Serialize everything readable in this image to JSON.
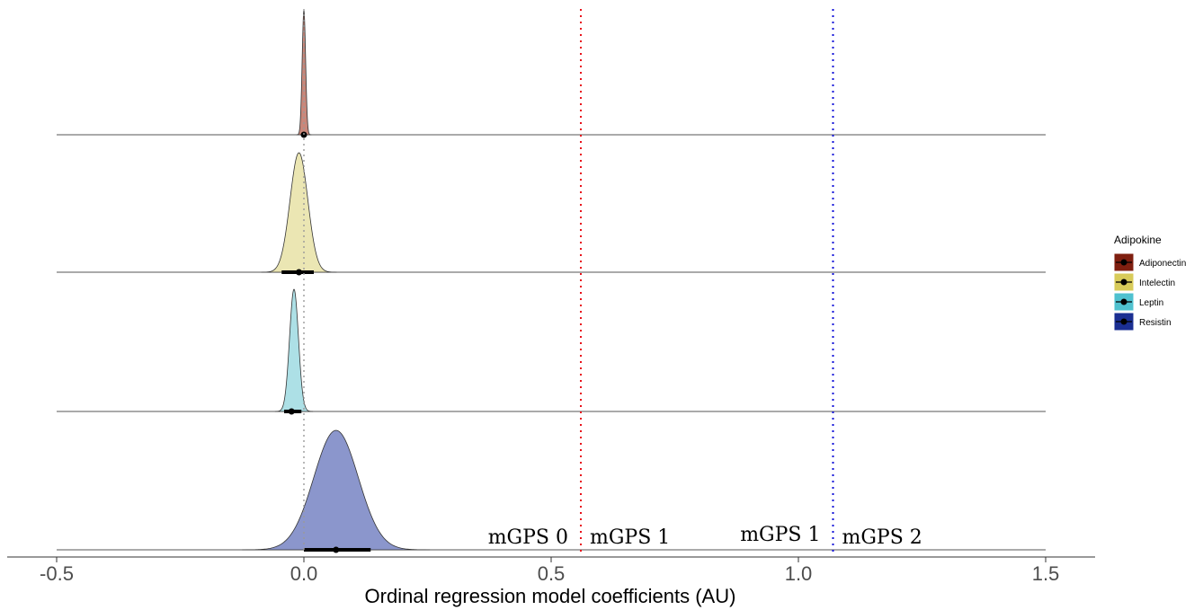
{
  "chart_data": {
    "type": "ridgeline",
    "xlabel": "Ordinal regression model coefficients (AU)",
    "xlim": [
      -0.5,
      1.5
    ],
    "xticks": [
      -0.5,
      0.0,
      0.5,
      1.0,
      1.5
    ],
    "xtick_labels": [
      "-0.5",
      "0.0",
      "0.5",
      "1.0",
      "1.5"
    ],
    "reference_line": 0,
    "legend": {
      "title": "Adipokine",
      "position": "right"
    },
    "series": [
      {
        "name": "Adiponectin",
        "color": "#7f1f10",
        "fill": "#c9877a",
        "peak_x": 0.0,
        "peak_sd": 0.0035,
        "point": 0.0,
        "interval": [
          -0.004,
          0.004
        ]
      },
      {
        "name": "Intelectin",
        "color": "#d8cb5a",
        "fill": "#ebe6b3",
        "peak_x": -0.01,
        "peak_sd": 0.018,
        "point": -0.01,
        "interval": [
          -0.045,
          0.02
        ]
      },
      {
        "name": "Leptin",
        "color": "#4fc1cf",
        "fill": "#ade0e6",
        "peak_x": -0.02,
        "peak_sd": 0.009,
        "point": -0.025,
        "interval": [
          -0.04,
          -0.005
        ]
      },
      {
        "name": "Resistin",
        "color": "#1b2f92",
        "fill": "#8b96cc",
        "peak_x": 0.065,
        "peak_sd": 0.045,
        "point": 0.065,
        "interval": [
          0.0,
          0.135
        ]
      }
    ],
    "thresholds": [
      {
        "x": 0.56,
        "color": "#e8101a",
        "left_label": "mGPS 0",
        "right_label": "mGPS 1"
      },
      {
        "x": 1.07,
        "color": "#1010d8",
        "left_label": "mGPS 1",
        "right_label": "mGPS 2"
      }
    ]
  }
}
